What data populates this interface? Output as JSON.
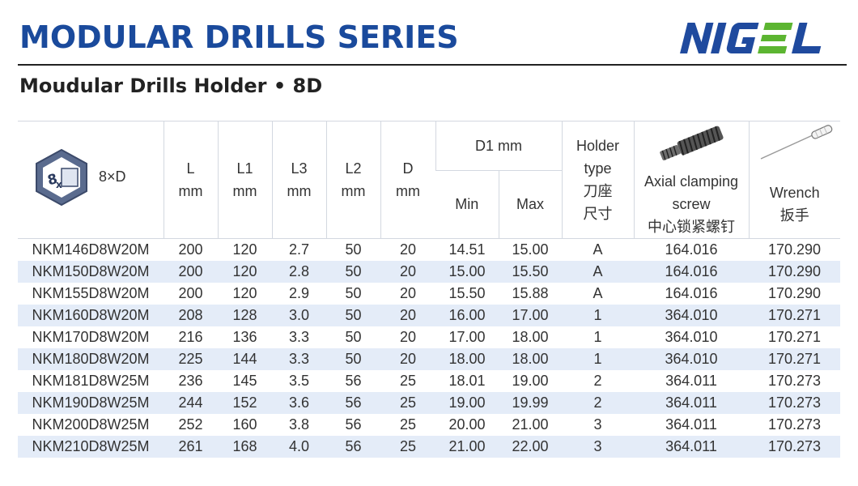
{
  "header": {
    "title": "MODULAR DRILLS SERIES",
    "subtitle": "Moudular Drills Holder • 8D",
    "logo_text": "NIGEL",
    "colors": {
      "title": "#1a4a9c",
      "logo_blue": "#1f4a9e",
      "logo_green": "#5cb531",
      "row_stripe": "#e4ecf8"
    }
  },
  "table": {
    "icon": {
      "name": "hexagon-8x-icon",
      "badge": "8x",
      "label": "8×D"
    },
    "headers": {
      "L": [
        "L",
        "mm"
      ],
      "L1": [
        "L1",
        "mm"
      ],
      "L3": [
        "L3",
        "mm"
      ],
      "L2": [
        "L2",
        "mm"
      ],
      "D": [
        "D",
        "mm"
      ],
      "D1": "D1 mm",
      "min": "Min",
      "max": "Max",
      "holder": [
        "Holder",
        "type",
        "刀座",
        "尺寸"
      ],
      "screw": [
        "Axial clamping",
        "screw",
        "中心锁紧螺钉"
      ],
      "wrench": [
        "Wrench",
        "扳手"
      ]
    },
    "rows": [
      [
        "NKM146D8W20M",
        "200",
        "120",
        "2.7",
        "50",
        "20",
        "14.51",
        "15.00",
        "A",
        "164.016",
        "170.290"
      ],
      [
        "NKM150D8W20M",
        "200",
        "120",
        "2.8",
        "50",
        "20",
        "15.00",
        "15.50",
        "A",
        "164.016",
        "170.290"
      ],
      [
        "NKM155D8W20M",
        "200",
        "120",
        "2.9",
        "50",
        "20",
        "15.50",
        "15.88",
        "A",
        "164.016",
        "170.290"
      ],
      [
        "NKM160D8W20M",
        "208",
        "128",
        "3.0",
        "50",
        "20",
        "16.00",
        "17.00",
        "1",
        "364.010",
        "170.271"
      ],
      [
        "NKM170D8W20M",
        "216",
        "136",
        "3.3",
        "50",
        "20",
        "17.00",
        "18.00",
        "1",
        "364.010",
        "170.271"
      ],
      [
        "NKM180D8W20M",
        "225",
        "144",
        "3.3",
        "50",
        "20",
        "18.00",
        "18.00",
        "1",
        "364.010",
        "170.271"
      ],
      [
        "NKM181D8W25M",
        "236",
        "145",
        "3.5",
        "56",
        "25",
        "18.01",
        "19.00",
        "2",
        "364.011",
        "170.273"
      ],
      [
        "NKM190D8W25M",
        "244",
        "152",
        "3.6",
        "56",
        "25",
        "19.00",
        "19.99",
        "2",
        "364.011",
        "170.273"
      ],
      [
        "NKM200D8W25M",
        "252",
        "160",
        "3.8",
        "56",
        "25",
        "20.00",
        "21.00",
        "3",
        "364.011",
        "170.273"
      ],
      [
        "NKM210D8W25M",
        "261",
        "168",
        "4.0",
        "56",
        "25",
        "21.00",
        "22.00",
        "3",
        "364.011",
        "170.273"
      ]
    ]
  }
}
